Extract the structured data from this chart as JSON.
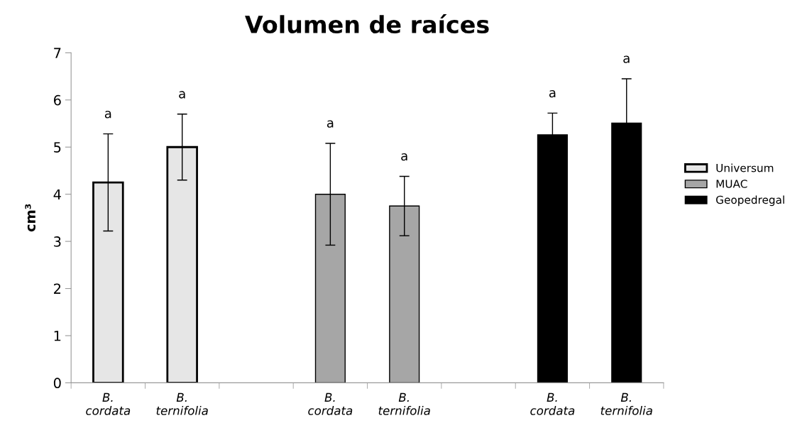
{
  "chart_data": {
    "type": "bar",
    "title": "Volumen de raíces",
    "ylabel": "cm³",
    "categories": [
      "B.\ncordata",
      "B.\nternifolia",
      null,
      "B.\ncordata",
      "B.\nternifolia",
      null,
      "B.\ncordata",
      "B.\nternifolia"
    ],
    "series": [
      {
        "name": "Universum",
        "color": "#e6e6e6",
        "values": [
          4.25,
          5.0,
          null,
          null,
          null,
          null,
          null,
          null
        ],
        "errors": [
          1.03,
          0.7,
          null,
          null,
          null,
          null,
          null,
          null
        ]
      },
      {
        "name": "MUAC",
        "color": "#a6a6a6",
        "values": [
          null,
          null,
          null,
          4.0,
          3.75,
          null,
          null,
          null
        ],
        "errors": [
          null,
          null,
          null,
          1.08,
          0.63,
          null,
          null,
          null
        ]
      },
      {
        "name": "Geopedregal",
        "color": "#000000",
        "values": [
          null,
          null,
          null,
          null,
          null,
          null,
          5.26,
          5.51
        ],
        "errors": [
          null,
          null,
          null,
          null,
          null,
          null,
          0.46,
          0.94
        ]
      }
    ],
    "ylim": [
      0,
      7
    ],
    "yticks": [
      0,
      1,
      2,
      3,
      4,
      5,
      6,
      7
    ],
    "annotations": [
      "a",
      "a",
      "a",
      "a",
      "a",
      "a"
    ],
    "grid": false,
    "legend": "right"
  }
}
